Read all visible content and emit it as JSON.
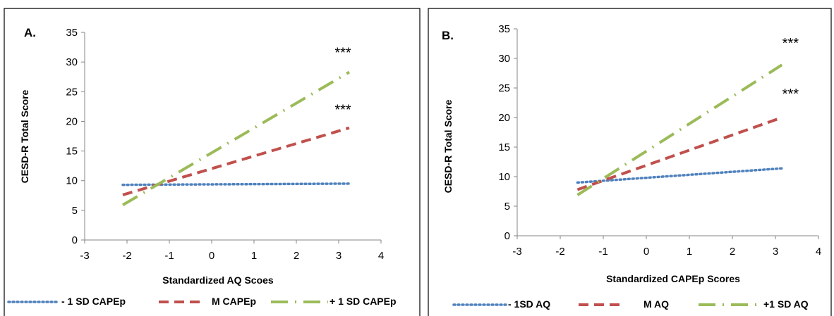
{
  "chart_data": [
    {
      "type": "line",
      "panel_label": "A.",
      "xlabel": "Standardized AQ Scoes",
      "ylabel": "CESD-R Total Score",
      "xlim": [
        -3,
        4
      ],
      "ylim": [
        0,
        35
      ],
      "xticks": [
        -3,
        -2,
        -1,
        0,
        1,
        2,
        3,
        4
      ],
      "yticks": [
        0,
        5,
        10,
        15,
        20,
        25,
        30,
        35
      ],
      "grid": false,
      "legend_position": "bottom",
      "series": [
        {
          "name": "- 1 SD CAPEp",
          "color": "#4f81bd",
          "style": "dotted",
          "x": [
            -2.1,
            3.25
          ],
          "y": [
            9.3,
            9.5
          ]
        },
        {
          "name": "M CAPEp",
          "color": "#c0504d",
          "style": "dashed",
          "x": [
            -2.1,
            3.25
          ],
          "y": [
            7.6,
            18.9
          ]
        },
        {
          "name": "+ 1 SD CAPEp",
          "color": "#9bbb59",
          "style": "dashdot",
          "x": [
            -2.1,
            3.25
          ],
          "y": [
            5.9,
            28.3
          ]
        }
      ],
      "annotations": [
        {
          "text": "***",
          "x": 3.1,
          "y": 30.8
        },
        {
          "text": "***",
          "x": 3.1,
          "y": 21.2
        }
      ]
    },
    {
      "type": "line",
      "panel_label": "B.",
      "xlabel": "Standardized CAPEp Scores",
      "ylabel": "CESD-R Total Score",
      "xlim": [
        -3,
        4
      ],
      "ylim": [
        0,
        35
      ],
      "xticks": [
        -3,
        -2,
        -1,
        0,
        1,
        2,
        3,
        4
      ],
      "yticks": [
        0,
        5,
        10,
        15,
        20,
        25,
        30,
        35
      ],
      "grid": false,
      "legend_position": "bottom",
      "series": [
        {
          "name": "- 1SD AQ",
          "color": "#4f81bd",
          "style": "dotted",
          "x": [
            -1.6,
            3.15
          ],
          "y": [
            9.0,
            11.4
          ]
        },
        {
          "name": "M AQ",
          "color": "#c0504d",
          "style": "dashed",
          "x": [
            -1.6,
            3.15
          ],
          "y": [
            7.8,
            20.0
          ]
        },
        {
          "name": "+1 SD  AQ",
          "color": "#9bbb59",
          "style": "dashdot",
          "x": [
            -1.6,
            3.15
          ],
          "y": [
            6.9,
            28.9
          ]
        }
      ],
      "annotations": [
        {
          "text": "***",
          "x": 3.35,
          "y": 31.8
        },
        {
          "text": "***",
          "x": 3.35,
          "y": 23.2
        }
      ]
    }
  ]
}
